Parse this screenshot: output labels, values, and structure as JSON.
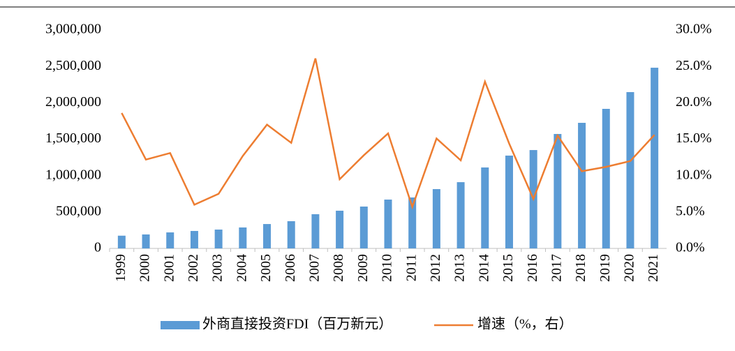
{
  "chart_data": {
    "type": "bar_line",
    "categories": [
      "1999",
      "2000",
      "2001",
      "2002",
      "2003",
      "2004",
      "2005",
      "2006",
      "2007",
      "2008",
      "2009",
      "2010",
      "2011",
      "2012",
      "2013",
      "2014",
      "2015",
      "2016",
      "2017",
      "2018",
      "2019",
      "2020",
      "2021"
    ],
    "series": [
      {
        "name": "外商直接投资FDI（百万新元）",
        "type": "bar",
        "color": "#5b9bd5",
        "values": [
          175000,
          192000,
          220000,
          240000,
          259000,
          288000,
          335000,
          374000,
          470000,
          518000,
          575000,
          671000,
          700000,
          815000,
          910000,
          1112000,
          1275000,
          1351000,
          1572000,
          1725000,
          1917000,
          2147000,
          2482000
        ]
      },
      {
        "name": "增速（%，右）",
        "type": "line",
        "axis": "y2",
        "color": "#ed7d31",
        "values": [
          18.6,
          12.2,
          13.1,
          6.0,
          7.5,
          12.7,
          17.0,
          14.5,
          26.1,
          9.5,
          12.8,
          15.8,
          5.7,
          15.1,
          12.1,
          22.9,
          14.4,
          6.8,
          15.5,
          10.6,
          11.2,
          12.0,
          15.6
        ]
      }
    ],
    "ylim": [
      0,
      3000000
    ],
    "yticks": [
      0,
      {
        "value": 500000,
        "label": "500,000"
      },
      {
        "value": 1000000,
        "label": "1,000,000"
      },
      {
        "value": 1500000,
        "label": "1,500,000"
      },
      {
        "value": 2000000,
        "label": "2,000,000"
      },
      {
        "value": 2500000,
        "label": "2,500,000"
      },
      {
        "value": 3000000,
        "label": "3,000,000"
      }
    ],
    "y2lim": [
      0,
      30
    ],
    "y2ticks": [
      {
        "value": 0,
        "label": "0.0%"
      },
      {
        "value": 5,
        "label": "5.0%"
      },
      {
        "value": 10,
        "label": "10.0%"
      },
      {
        "value": 15,
        "label": "15.0%"
      },
      {
        "value": 20,
        "label": "20.0%"
      },
      {
        "value": 25,
        "label": "25.0%"
      },
      {
        "value": 30,
        "label": "30.0%"
      }
    ],
    "legend": "bottom"
  }
}
